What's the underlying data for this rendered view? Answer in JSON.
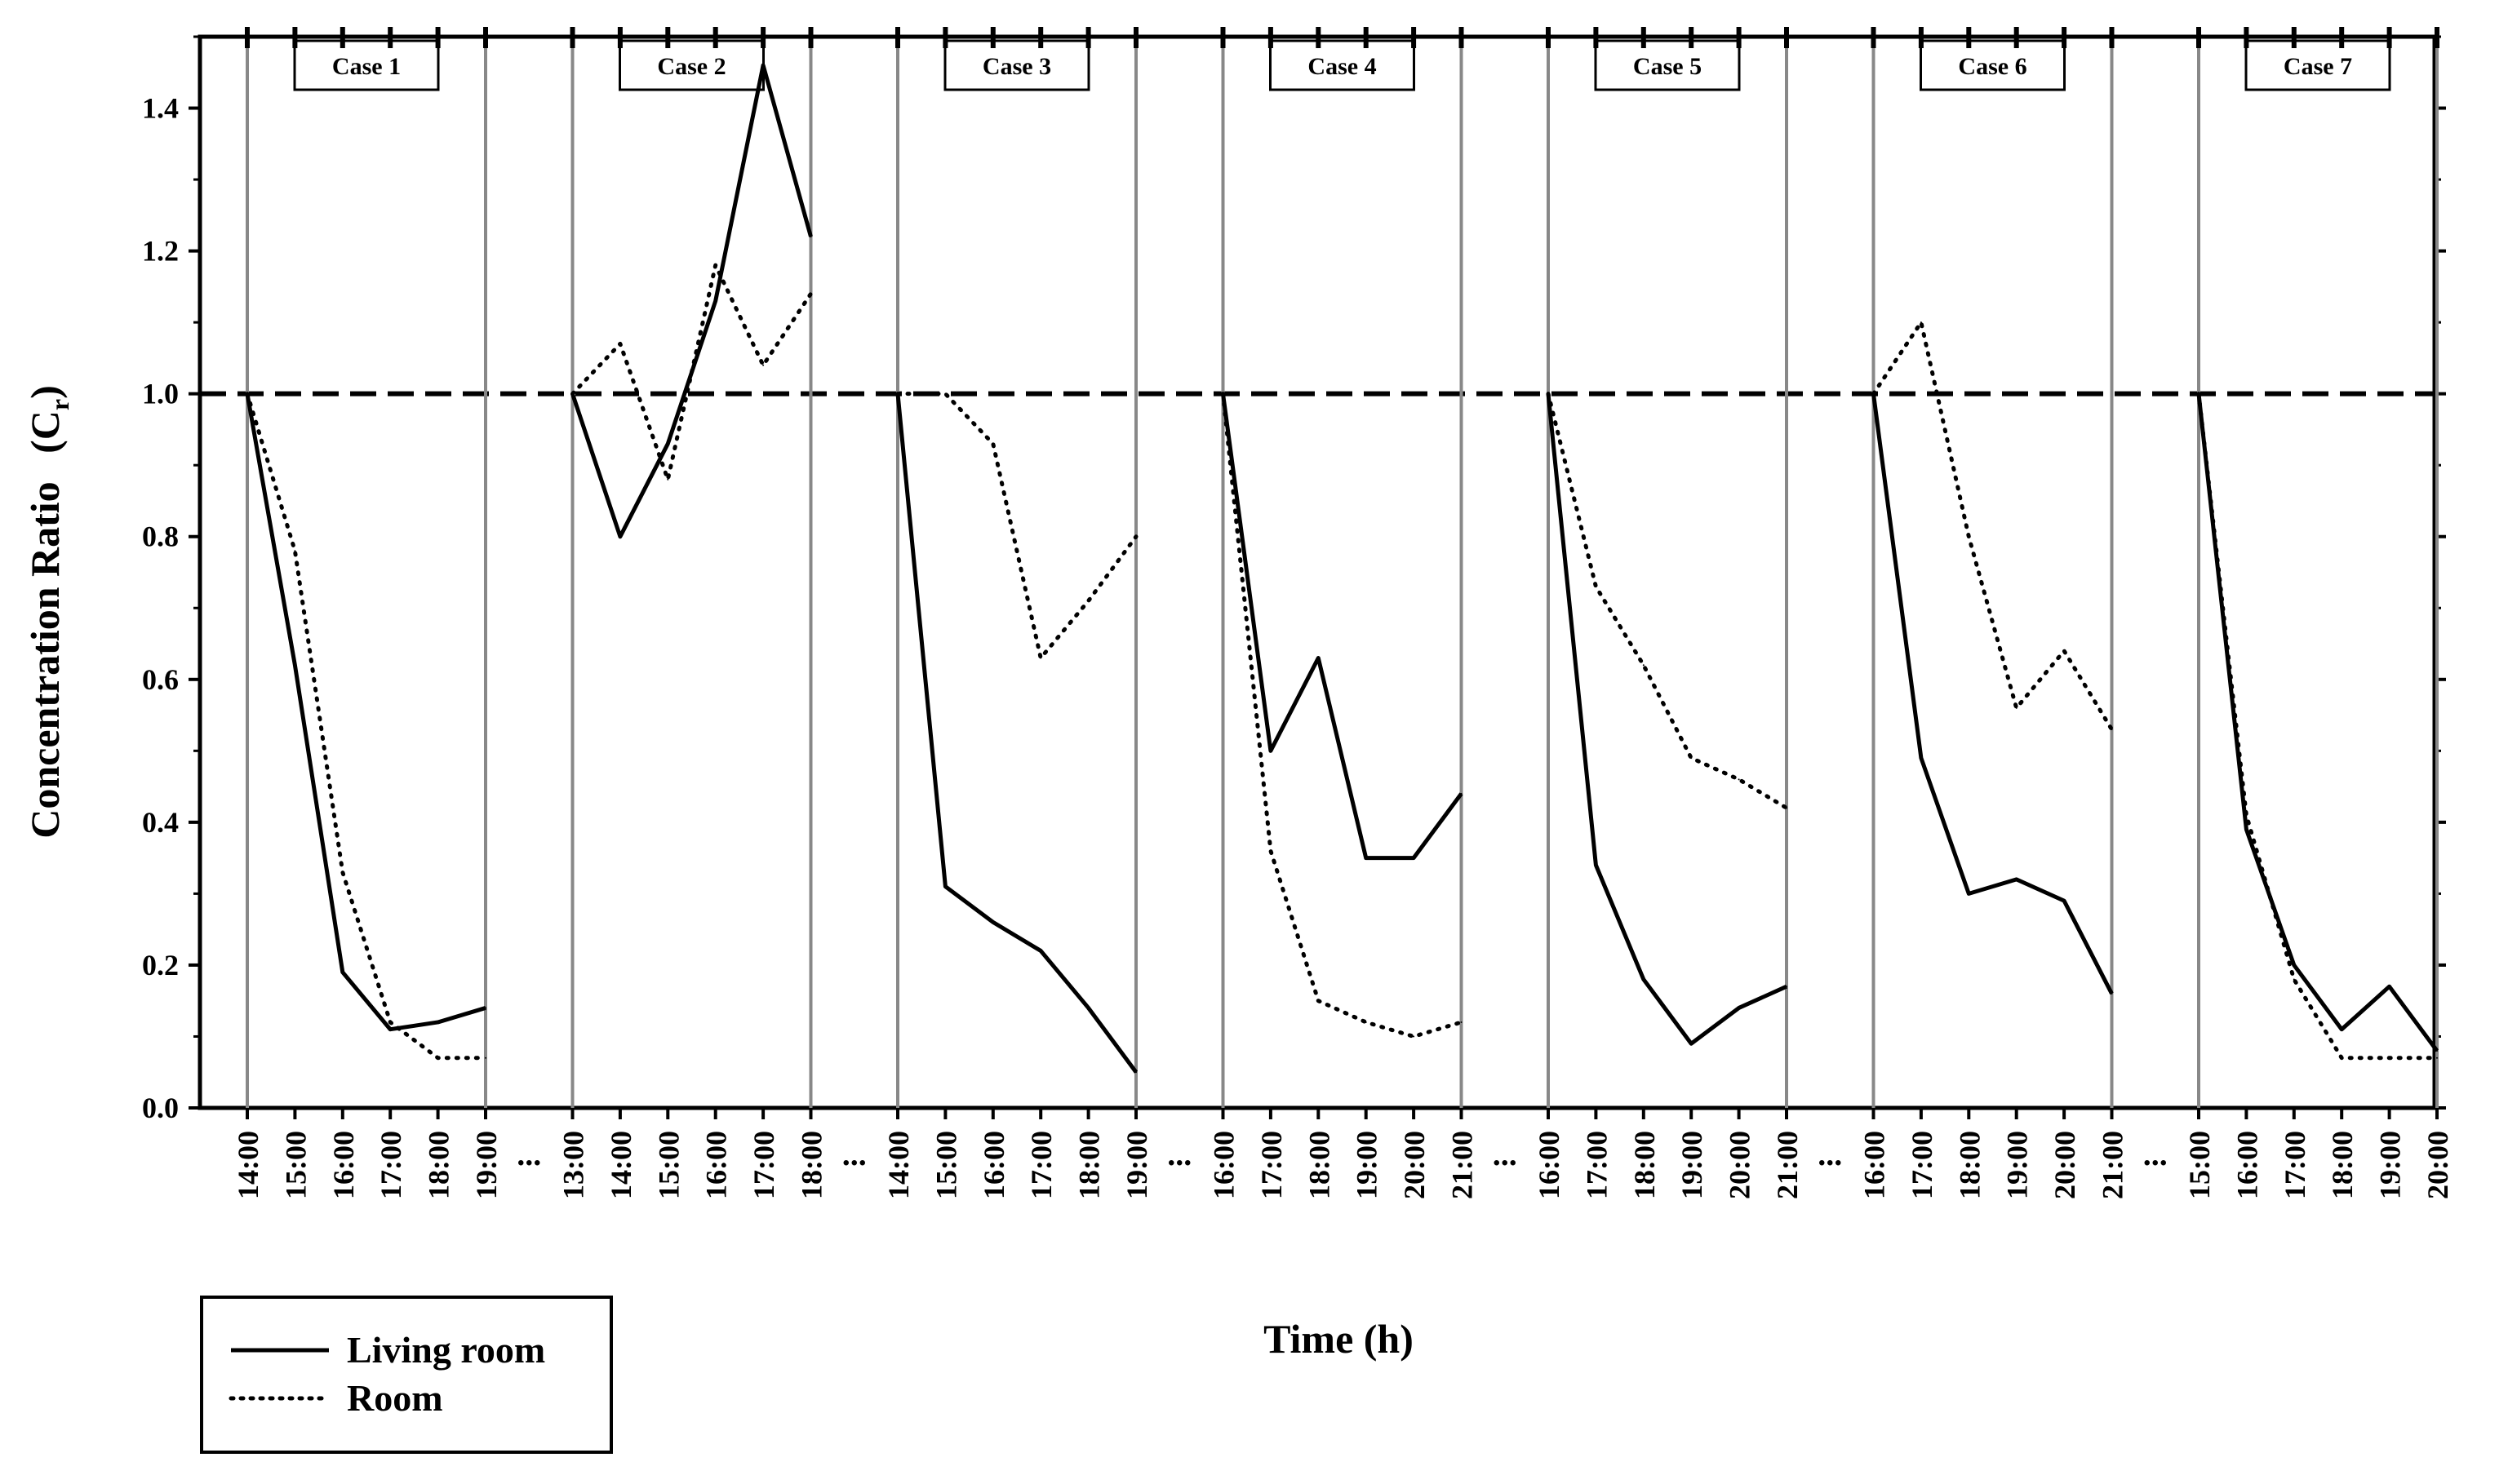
{
  "chart_data": {
    "type": "line",
    "ylabel": "Concentration Ratio",
    "ylabel_symbol": "C",
    "ylabel_subscript": "r",
    "xlabel": "Time (h)",
    "ylim": [
      0,
      1.5
    ],
    "yticks": [
      "0.0",
      "0.2",
      "0.4",
      "0.6",
      "0.8",
      "1.0",
      "1.2",
      "1.4"
    ],
    "reference_line": {
      "y": 1.0,
      "style": "dashed"
    },
    "break_marker": "...",
    "legend": {
      "position": "bottom-left",
      "entries": [
        {
          "name": "Living room",
          "style": "solid"
        },
        {
          "name": "Room",
          "style": "dotted"
        }
      ]
    },
    "panels": [
      {
        "label": "Case 1",
        "categories": [
          "14:00",
          "15:00",
          "16:00",
          "17:00",
          "18:00",
          "19:00"
        ],
        "series": [
          {
            "name": "Living room",
            "values": [
              1.0,
              0.62,
              0.19,
              0.11,
              0.12,
              0.14
            ]
          },
          {
            "name": "Room",
            "values": [
              1.0,
              0.78,
              0.33,
              0.12,
              0.07,
              0.07
            ]
          }
        ]
      },
      {
        "label": "Case 2",
        "categories": [
          "13:00",
          "14:00",
          "15:00",
          "16:00",
          "17:00",
          "18:00"
        ],
        "series": [
          {
            "name": "Living room",
            "values": [
              1.0,
              0.8,
              0.93,
              1.13,
              1.46,
              1.22
            ]
          },
          {
            "name": "Room",
            "values": [
              1.0,
              1.07,
              0.88,
              1.18,
              1.04,
              1.14
            ]
          }
        ]
      },
      {
        "label": "Case 3",
        "categories": [
          "14:00",
          "15:00",
          "16:00",
          "17:00",
          "18:00",
          "19:00"
        ],
        "series": [
          {
            "name": "Living room",
            "values": [
              1.0,
              0.31,
              0.26,
              0.22,
              0.14,
              0.05
            ]
          },
          {
            "name": "Room",
            "values": [
              1.0,
              1.0,
              0.93,
              0.63,
              0.71,
              0.8
            ]
          }
        ]
      },
      {
        "label": "Case 4",
        "categories": [
          "16:00",
          "17:00",
          "18:00",
          "19:00",
          "20:00",
          "21:00"
        ],
        "series": [
          {
            "name": "Living room",
            "values": [
              1.0,
              0.5,
              0.63,
              0.35,
              0.35,
              0.44
            ]
          },
          {
            "name": "Room",
            "values": [
              1.0,
              0.36,
              0.15,
              0.12,
              0.1,
              0.12
            ]
          }
        ]
      },
      {
        "label": "Case 5",
        "categories": [
          "16:00",
          "17:00",
          "18:00",
          "19:00",
          "20:00",
          "21:00"
        ],
        "series": [
          {
            "name": "Living room",
            "values": [
              1.0,
              0.34,
              0.18,
              0.09,
              0.14,
              0.17
            ]
          },
          {
            "name": "Room",
            "values": [
              1.0,
              0.73,
              0.62,
              0.49,
              0.46,
              0.42
            ]
          }
        ]
      },
      {
        "label": "Case 6",
        "categories": [
          "16:00",
          "17:00",
          "18:00",
          "19:00",
          "20:00",
          "21:00"
        ],
        "series": [
          {
            "name": "Living room",
            "values": [
              1.0,
              0.49,
              0.3,
              0.32,
              0.29,
              0.16
            ]
          },
          {
            "name": "Room",
            "values": [
              1.0,
              1.1,
              0.8,
              0.56,
              0.64,
              0.53
            ]
          }
        ]
      },
      {
        "label": "Case 7",
        "categories": [
          "15:00",
          "16:00",
          "17:00",
          "18:00",
          "19:00",
          "20:00"
        ],
        "series": [
          {
            "name": "Living room",
            "values": [
              1.0,
              0.39,
              0.2,
              0.11,
              0.17,
              0.08
            ]
          },
          {
            "name": "Room",
            "values": [
              1.0,
              0.41,
              0.18,
              0.07,
              0.07,
              0.07
            ]
          }
        ]
      }
    ]
  }
}
